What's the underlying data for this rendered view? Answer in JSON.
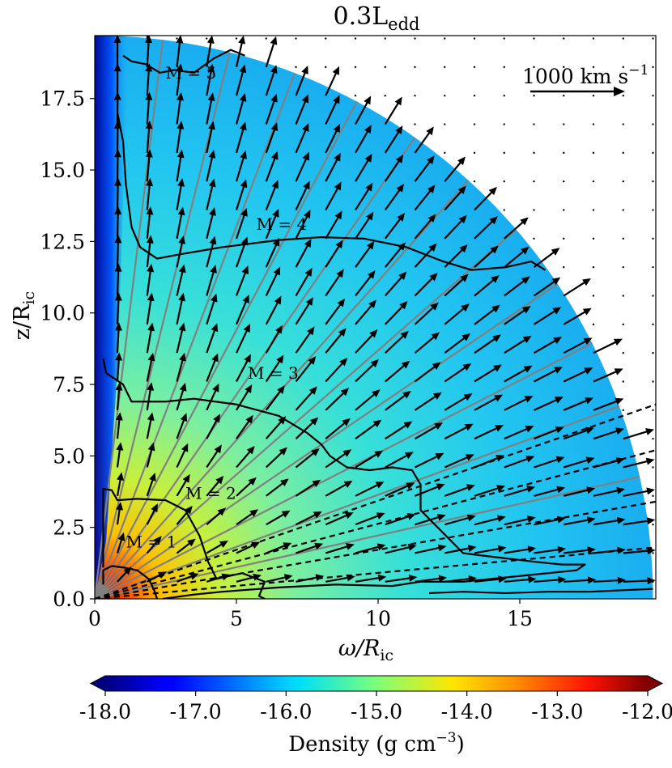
{
  "chart_data": {
    "type": "heatmap",
    "title_base": "0.3L",
    "title_sub": "edd",
    "xlabel_symbol": "ω/R",
    "xlabel_sub": "ic",
    "ylabel_base": "z/R",
    "ylabel_sub": "ic",
    "xlim": [
      0,
      19.8
    ],
    "ylim": [
      0,
      19.7
    ],
    "xticks": [
      {
        "value": 0,
        "label": "0"
      },
      {
        "value": 5,
        "label": "5"
      },
      {
        "value": 10,
        "label": "10"
      },
      {
        "value": 15,
        "label": "15"
      }
    ],
    "yticks": [
      {
        "value": 0.0,
        "label": "0.0"
      },
      {
        "value": 2.5,
        "label": "2.5"
      },
      {
        "value": 5.0,
        "label": "5.0"
      },
      {
        "value": 7.5,
        "label": "7.5"
      },
      {
        "value": 10.0,
        "label": "10.0"
      },
      {
        "value": 12.5,
        "label": "12.5"
      },
      {
        "value": 15.0,
        "label": "15.0"
      },
      {
        "value": 17.5,
        "label": "17.5"
      }
    ],
    "domain_outer_radius": 19.7,
    "colorbar": {
      "label": "Density (g cm",
      "label_exp": "−3",
      "label_close": ")",
      "min": -18.0,
      "max": -12.0,
      "ticks": [
        {
          "value": -18.0,
          "label": "-18.0"
        },
        {
          "value": -17.0,
          "label": "-17.0"
        },
        {
          "value": -16.0,
          "label": "-16.0"
        },
        {
          "value": -15.0,
          "label": "-15.0"
        },
        {
          "value": -14.0,
          "label": "-14.0"
        },
        {
          "value": -13.0,
          "label": "-13.0"
        },
        {
          "value": -12.0,
          "label": "-12.0"
        }
      ],
      "colormap": "jet"
    },
    "velocity_key": {
      "label": "1000 km s",
      "label_exp": "−1",
      "speed_kms": 1000
    },
    "mach_contours": [
      {
        "label": "M = 1",
        "label_at": [
          1.1,
          1.8
        ],
        "points": [
          [
            0.3,
            0.5
          ],
          [
            0.3,
            1.0
          ],
          [
            0.6,
            1.15
          ],
          [
            1.0,
            1.1
          ],
          [
            1.5,
            1.0
          ],
          [
            1.9,
            0.7
          ],
          [
            2.1,
            0.3
          ],
          [
            2.2,
            0
          ]
        ]
      },
      {
        "label": "M = 2",
        "label_at": [
          3.2,
          3.5
        ],
        "points": [
          [
            0.3,
            1.1
          ],
          [
            0.3,
            3.85
          ],
          [
            0.6,
            3.8
          ],
          [
            0.8,
            3.45
          ],
          [
            1.5,
            3.5
          ],
          [
            2.5,
            3.45
          ],
          [
            3.2,
            3.1
          ],
          [
            3.7,
            2.2
          ],
          [
            4.0,
            1.3
          ],
          [
            4.3,
            0.7
          ],
          [
            5.2,
            0.9
          ],
          [
            6.0,
            0.6
          ],
          [
            5.8,
            0.1
          ],
          [
            6.0,
            0
          ]
        ]
      },
      {
        "label": "M = 3",
        "label_at": [
          5.4,
          7.7
        ],
        "points": [
          [
            0.3,
            8.4
          ],
          [
            0.4,
            7.9
          ],
          [
            1.0,
            7.5
          ],
          [
            1.3,
            6.9
          ],
          [
            2.5,
            6.9
          ],
          [
            3.5,
            7.0
          ],
          [
            5.0,
            6.8
          ],
          [
            6.5,
            6.4
          ],
          [
            7.5,
            5.8
          ],
          [
            8.0,
            5.4
          ],
          [
            8.3,
            5.0
          ],
          [
            8.9,
            4.6
          ],
          [
            9.7,
            4.5
          ],
          [
            10.5,
            4.6
          ],
          [
            11.2,
            4.5
          ],
          [
            11.5,
            4.0
          ],
          [
            11.5,
            3.1
          ],
          [
            12.0,
            2.6
          ],
          [
            12.4,
            2.2
          ],
          [
            13.0,
            1.6
          ],
          [
            13.8,
            1.5
          ],
          [
            15.5,
            1.3
          ],
          [
            16.5,
            1.2
          ],
          [
            17.3,
            1.2
          ],
          [
            17.0,
            1.0
          ],
          [
            15.0,
            0.8
          ],
          [
            13.0,
            0.6
          ],
          [
            11.5,
            0.6
          ],
          [
            10.5,
            0.45
          ],
          [
            8.5,
            0.5
          ],
          [
            6.5,
            0.4
          ],
          [
            4.5,
            0.25
          ],
          [
            3.5,
            0.15
          ],
          [
            2.4,
            0
          ]
        ]
      },
      {
        "label": "M = 4",
        "label_at": [
          5.7,
          12.9
        ],
        "points": [
          [
            0.8,
            17.0
          ],
          [
            1.0,
            16.0
          ],
          [
            1.1,
            14.5
          ],
          [
            1.3,
            13.0
          ],
          [
            1.6,
            12.3
          ],
          [
            2.2,
            11.9
          ],
          [
            3.0,
            12.05
          ],
          [
            4.5,
            12.3
          ],
          [
            6.5,
            12.55
          ],
          [
            8.0,
            12.65
          ],
          [
            9.5,
            12.6
          ],
          [
            11.0,
            12.3
          ],
          [
            12.3,
            11.8
          ],
          [
            13.3,
            11.5
          ],
          [
            14.5,
            11.6
          ],
          [
            15.4,
            11.8
          ],
          [
            15.9,
            11.5
          ]
        ]
      },
      {
        "label": "M = 5",
        "label_at": [
          2.5,
          18.2
        ],
        "points": [
          [
            1.0,
            19.0
          ],
          [
            1.3,
            18.8
          ],
          [
            1.8,
            18.7
          ],
          [
            2.3,
            18.4
          ],
          [
            2.8,
            18.5
          ],
          [
            3.5,
            18.4
          ],
          [
            4.2,
            18.9
          ],
          [
            4.8,
            19.2
          ],
          [
            5.3,
            19.0
          ]
        ]
      },
      {
        "label": "",
        "label_at": [
          0,
          0
        ],
        "points": [
          [
            11.8,
            0.2
          ],
          [
            13.0,
            0.25
          ],
          [
            14.5,
            0.2
          ],
          [
            16.0,
            0.25
          ],
          [
            17.5,
            0.25
          ],
          [
            19.7,
            0.35
          ]
        ]
      }
    ],
    "dashed_lines": [
      {
        "points": [
          [
            0,
            0
          ],
          [
            19.8,
            6.8
          ]
        ]
      },
      {
        "points": [
          [
            0,
            0
          ],
          [
            19.8,
            5.2
          ]
        ]
      },
      {
        "points": [
          [
            0,
            0
          ],
          [
            19.8,
            3.4
          ]
        ]
      },
      {
        "points": [
          [
            0,
            0
          ],
          [
            19.8,
            1.8
          ]
        ]
      }
    ],
    "streamline_angles_deg": [
      12.5,
      20,
      27,
      34,
      41,
      48,
      55,
      62,
      69,
      76,
      83
    ]
  }
}
